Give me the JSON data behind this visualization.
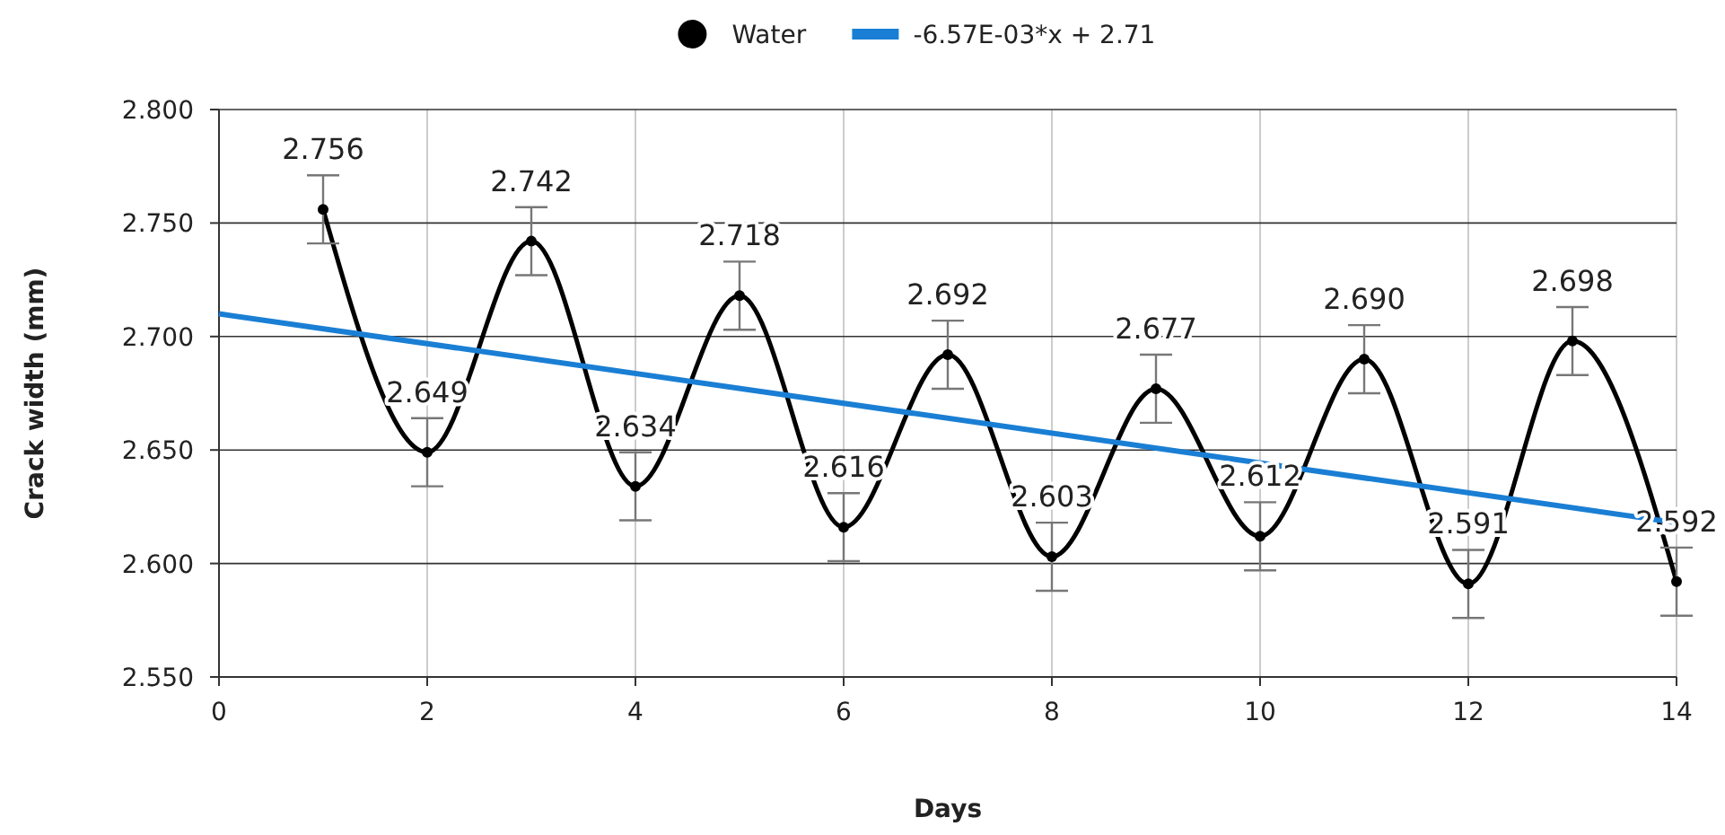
{
  "chart_data": {
    "type": "line",
    "xlabel": "Days",
    "ylabel": "Crack width (mm)",
    "x": [
      1,
      2,
      3,
      4,
      5,
      6,
      7,
      8,
      9,
      10,
      11,
      12,
      13,
      14
    ],
    "xlim": [
      0,
      14
    ],
    "xticks": [
      0,
      2,
      4,
      6,
      8,
      10,
      12,
      14
    ],
    "ylim": [
      2.55,
      2.8
    ],
    "yticks": [
      {
        "value": 2.55,
        "label": "2.550"
      },
      {
        "value": 2.6,
        "label": "2.600"
      },
      {
        "value": 2.65,
        "label": "2.650"
      },
      {
        "value": 2.7,
        "label": "2.700"
      },
      {
        "value": 2.75,
        "label": "2.750"
      },
      {
        "value": 2.8,
        "label": "2.800"
      }
    ],
    "grid": true,
    "legend": "top",
    "marker": "circle",
    "line_style": "solid",
    "series": [
      {
        "name": "Water",
        "color": "#000000",
        "values": [
          2.756,
          2.649,
          2.742,
          2.634,
          2.718,
          2.616,
          2.692,
          2.603,
          2.677,
          2.612,
          2.69,
          2.591,
          2.698,
          2.592
        ],
        "errors": [
          0.015,
          0.015,
          0.015,
          0.015,
          0.015,
          0.015,
          0.015,
          0.015,
          0.015,
          0.015,
          0.015,
          0.015,
          0.015,
          0.015
        ],
        "value_labels": [
          "2.756",
          "2.649",
          "2.742",
          "2.634",
          "2.718",
          "2.616",
          "2.692",
          "2.603",
          "2.677",
          "2.612",
          "2.690",
          "2.591",
          "2.698",
          "2.592"
        ]
      },
      {
        "name": "-6.57E-03*x + 2.71",
        "type": "line",
        "color": "#1a7fd4",
        "x": [
          0,
          14
        ],
        "values": [
          2.71,
          2.618
        ],
        "marker": "none"
      }
    ]
  }
}
